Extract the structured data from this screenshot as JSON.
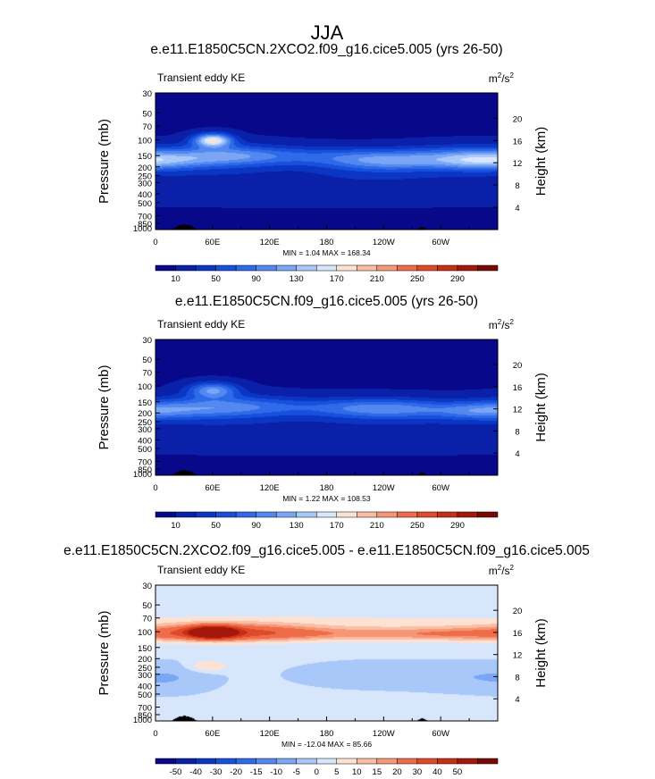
{
  "figure": {
    "title": "JJA",
    "colors": {
      "land": "#000000",
      "axis": "#000000",
      "background": "#ffffff"
    }
  },
  "chart_data": [
    {
      "type": "heatmap",
      "title": "e.e11.E1850C5CN.2XCO2.f09_g16.cice5.005 (yrs 26-50)",
      "field_label": "Transient eddy KE",
      "units_base": "m",
      "units_exp1": "2",
      "units_mid": "/s",
      "units_exp2": "2",
      "ylabel": "Pressure (mb)",
      "ylabel_right": "Height (km)",
      "x_ticks": [
        "0",
        "60E",
        "120E",
        "180",
        "120W",
        "60W"
      ],
      "y_ticks": [
        "30",
        "50",
        "70",
        "100",
        "150",
        "200",
        "250",
        "300",
        "400",
        "500",
        "700",
        "850",
        "1000"
      ],
      "height_ticks": [
        "20",
        "16",
        "12",
        "8",
        "4"
      ],
      "stats": "MIN =   1.04  MAX = 168.34",
      "colorbar_labels": [
        "10",
        "50",
        "90",
        "130",
        "170",
        "210",
        "250",
        "290"
      ],
      "colorbar_colors": [
        "#08088a",
        "#0a20a8",
        "#0b36c4",
        "#1750dc",
        "#2f6ae8",
        "#5288f0",
        "#7aa6f5",
        "#a9c8fa",
        "#d8e6fc",
        "#fde2d4",
        "#f9bea4",
        "#f59776",
        "#ef6c4a",
        "#e14a28",
        "#c62f14",
        "#a3180a",
        "#780a04"
      ],
      "field": {
        "base": 8,
        "xmax": 360,
        "features": [
          {
            "lon": 60,
            "p": 100,
            "amp": 160,
            "wlon": 14,
            "wlog": 0.12
          },
          {
            "lon": 72,
            "p": 150,
            "amp": 55,
            "wlon": 42,
            "wlog": 0.22
          },
          {
            "lon": 120,
            "p": 150,
            "amp": 55,
            "wlon": 150,
            "wlog": 0.17
          },
          {
            "lon": 240,
            "p": 175,
            "amp": 75,
            "wlon": 45,
            "wlog": 0.18
          },
          {
            "lon": 350,
            "p": 175,
            "amp": 80,
            "wlon": 40,
            "wlog": 0.16
          },
          {
            "lon": 320,
            "p": 150,
            "amp": 45,
            "wlon": 40,
            "wlog": 0.2
          },
          {
            "lon": 180,
            "p": 300,
            "amp": 20,
            "wlon": 260,
            "wlog": 0.3
          },
          {
            "lon": 180,
            "p": 40,
            "amp": -6,
            "wlon": 400,
            "wlog": 0.3
          }
        ],
        "land": [
          {
            "lon": 30,
            "p": 1000,
            "wlon": 14,
            "ptop": 870
          },
          {
            "lon": 280,
            "p": 1000,
            "wlon": 6,
            "ptop": 930
          }
        ]
      }
    },
    {
      "type": "heatmap",
      "title": "e.e11.E1850C5CN.f09_g16.cice5.005 (yrs 26-50)",
      "field_label": "Transient eddy KE",
      "units_base": "m",
      "units_exp1": "2",
      "units_mid": "/s",
      "units_exp2": "2",
      "ylabel": "Pressure (mb)",
      "ylabel_right": "Height (km)",
      "x_ticks": [
        "0",
        "60E",
        "120E",
        "180",
        "120W",
        "60W"
      ],
      "y_ticks": [
        "30",
        "50",
        "70",
        "100",
        "150",
        "200",
        "250",
        "300",
        "400",
        "500",
        "700",
        "850",
        "1000"
      ],
      "height_ticks": [
        "20",
        "16",
        "12",
        "8",
        "4"
      ],
      "stats": "MIN =   1.22  MAX = 108.53",
      "colorbar_labels": [
        "10",
        "50",
        "90",
        "130",
        "170",
        "210",
        "250",
        "290"
      ],
      "colorbar_colors": [
        "#08088a",
        "#0a20a8",
        "#0b36c4",
        "#1750dc",
        "#2f6ae8",
        "#5288f0",
        "#7aa6f5",
        "#a9c8fa",
        "#d8e6fc",
        "#fde2d4",
        "#f9bea4",
        "#f59776",
        "#ef6c4a",
        "#e14a28",
        "#c62f14",
        "#a3180a",
        "#780a04"
      ],
      "field": {
        "base": 8,
        "xmax": 360,
        "features": [
          {
            "lon": 60,
            "p": 110,
            "amp": 100,
            "wlon": 18,
            "wlog": 0.14
          },
          {
            "lon": 70,
            "p": 170,
            "amp": 50,
            "wlon": 45,
            "wlog": 0.22
          },
          {
            "lon": 120,
            "p": 170,
            "amp": 45,
            "wlon": 140,
            "wlog": 0.18
          },
          {
            "lon": 240,
            "p": 180,
            "amp": 65,
            "wlon": 45,
            "wlog": 0.18
          },
          {
            "lon": 345,
            "p": 190,
            "amp": 70,
            "wlon": 40,
            "wlog": 0.16
          },
          {
            "lon": 180,
            "p": 320,
            "amp": 18,
            "wlon": 260,
            "wlog": 0.3
          },
          {
            "lon": 180,
            "p": 40,
            "amp": -6,
            "wlon": 400,
            "wlog": 0.3
          }
        ],
        "land": [
          {
            "lon": 30,
            "p": 1000,
            "wlon": 14,
            "ptop": 870
          },
          {
            "lon": 280,
            "p": 1000,
            "wlon": 6,
            "ptop": 930
          }
        ]
      }
    },
    {
      "type": "heatmap",
      "title": "e.e11.E1850C5CN.2XCO2.f09_g16.cice5.005 - e.e11.E1850C5CN.f09_g16.cice5.005",
      "field_label": "Transient eddy KE",
      "units_base": "m",
      "units_exp1": "2",
      "units_mid": "/s",
      "units_exp2": "2",
      "ylabel": "Pressure (mb)",
      "ylabel_right": "Height (km)",
      "x_ticks": [
        "0",
        "60E",
        "120E",
        "180",
        "120W",
        "60W"
      ],
      "y_ticks": [
        "30",
        "50",
        "70",
        "100",
        "150",
        "200",
        "250",
        "300",
        "400",
        "500",
        "700",
        "850",
        "1000"
      ],
      "height_ticks": [
        "20",
        "16",
        "12",
        "8",
        "4"
      ],
      "stats": "MIN = -12.04  MAX =  85.66",
      "colorbar_labels": [
        "-50",
        "-40",
        "-30",
        "-20",
        "-15",
        "-10",
        "-5",
        "0",
        "5",
        "10",
        "15",
        "20",
        "30",
        "40",
        "50"
      ],
      "colorbar_colors": [
        "#08088a",
        "#0a20a8",
        "#0b36c4",
        "#1750dc",
        "#2f6ae8",
        "#5288f0",
        "#7aa6f5",
        "#a9c8fa",
        "#d8e6fc",
        "#fde2d4",
        "#f9bea4",
        "#f59776",
        "#ef6c4a",
        "#e14a28",
        "#c62f14",
        "#a3180a",
        "#780a04"
      ],
      "field": {
        "base": 1,
        "xmax": 360,
        "features": [
          {
            "lon": 60,
            "p": 100,
            "amp": 70,
            "wlon": 16,
            "wlog": 0.1
          },
          {
            "lon": 75,
            "p": 100,
            "amp": 22,
            "wlon": 60,
            "wlog": 0.16
          },
          {
            "lon": 170,
            "p": 105,
            "amp": 12,
            "wlon": 130,
            "wlog": 0.12
          },
          {
            "lon": 320,
            "p": 105,
            "amp": 10,
            "wlon": 60,
            "wlog": 0.12
          },
          {
            "lon": 180,
            "p": 80,
            "amp": 5,
            "wlon": 300,
            "wlog": 0.22
          },
          {
            "lon": 55,
            "p": 240,
            "amp": 10,
            "wlon": 14,
            "wlog": 0.1
          },
          {
            "lon": 20,
            "p": 330,
            "amp": -4,
            "wlon": 30,
            "wlog": 0.25
          },
          {
            "lon": 230,
            "p": 300,
            "amp": -5,
            "wlon": 55,
            "wlog": 0.22
          },
          {
            "lon": 330,
            "p": 320,
            "amp": -4,
            "wlon": 45,
            "wlog": 0.25
          }
        ],
        "land": [
          {
            "lon": 30,
            "p": 1000,
            "wlon": 14,
            "ptop": 870
          },
          {
            "lon": 280,
            "p": 1000,
            "wlon": 6,
            "ptop": 930
          }
        ]
      }
    }
  ]
}
